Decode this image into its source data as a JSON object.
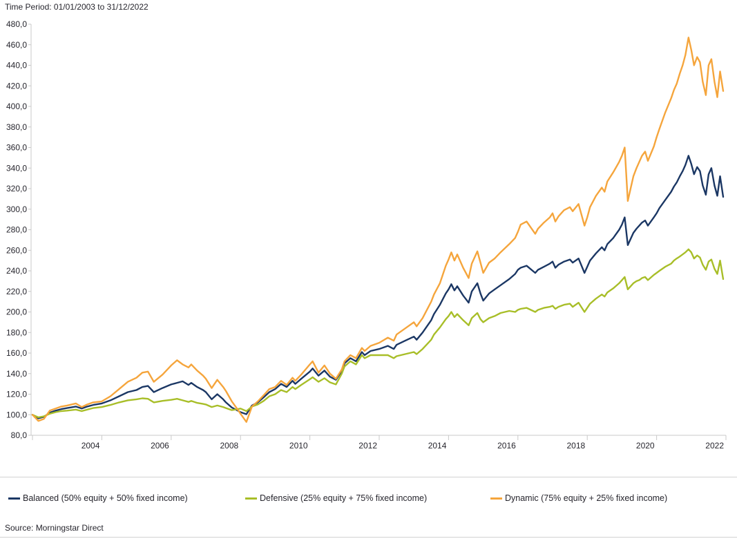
{
  "header": {
    "time_period": "Time Period: 01/01/2003 to 31/12/2022"
  },
  "footer": {
    "source": "Source: Morningstar Direct"
  },
  "colors": {
    "balanced": "#1b3764",
    "defensive": "#a8be28",
    "dynamic": "#f5a53c",
    "axis": "#c9c9c9",
    "divider": "#d2d2d2",
    "text": "#26252d"
  },
  "chart_data": {
    "type": "line",
    "title": "Time Period: 01/01/2003 to 31/12/2022",
    "xlabel": "",
    "ylabel": "",
    "xlim": [
      2003,
      2023
    ],
    "ylim": [
      80,
      480
    ],
    "grid": false,
    "legend_position": "bottom",
    "y_ticks": [
      80,
      100,
      120,
      140,
      160,
      180,
      200,
      220,
      240,
      260,
      280,
      300,
      320,
      340,
      360,
      380,
      400,
      420,
      440,
      460,
      480
    ],
    "y_tick_labels": [
      "80,0",
      "100,0",
      "120,0",
      "140,0",
      "160,0",
      "180,0",
      "200,0",
      "220,0",
      "240,0",
      "260,0",
      "280,0",
      "300,0",
      "320,0",
      "340,0",
      "360,0",
      "380,0",
      "400,0",
      "420,0",
      "440,0",
      "460,0",
      "480,0"
    ],
    "x_ticks": [
      2003,
      2005,
      2007,
      2009,
      2011,
      2013,
      2015,
      2017,
      2019,
      2021,
      2023
    ],
    "x_tick_labels": [
      {
        "text": "2004",
        "at": 2005
      },
      {
        "text": "2006",
        "at": 2007
      },
      {
        "text": "2008",
        "at": 2009
      },
      {
        "text": "2010",
        "at": 2011
      },
      {
        "text": "2012",
        "at": 2013
      },
      {
        "text": "2014",
        "at": 2015
      },
      {
        "text": "2016",
        "at": 2017
      },
      {
        "text": "2018",
        "at": 2019
      },
      {
        "text": "2020",
        "at": 2021
      },
      {
        "text": "2022",
        "at": 2023
      }
    ],
    "x": [
      2003.0,
      2003.17,
      2003.33,
      2003.5,
      2003.67,
      2003.83,
      2004.0,
      2004.25,
      2004.42,
      2004.58,
      2004.75,
      2005.0,
      2005.25,
      2005.5,
      2005.75,
      2006.0,
      2006.17,
      2006.33,
      2006.5,
      2006.75,
      2007.0,
      2007.17,
      2007.33,
      2007.5,
      2007.58,
      2007.75,
      2007.92,
      2008.0,
      2008.17,
      2008.33,
      2008.5,
      2008.58,
      2008.75,
      2008.92,
      2009.0,
      2009.17,
      2009.33,
      2009.5,
      2009.67,
      2009.83,
      2010.0,
      2010.17,
      2010.33,
      2010.5,
      2010.58,
      2010.75,
      2011.0,
      2011.08,
      2011.25,
      2011.42,
      2011.5,
      2011.58,
      2011.75,
      2011.92,
      2012.0,
      2012.17,
      2012.33,
      2012.5,
      2012.58,
      2012.75,
      2013.0,
      2013.25,
      2013.42,
      2013.5,
      2013.75,
      2014.0,
      2014.08,
      2014.25,
      2014.5,
      2014.58,
      2014.75,
      2014.92,
      2015.0,
      2015.08,
      2015.17,
      2015.25,
      2015.42,
      2015.58,
      2015.67,
      2015.83,
      2015.92,
      2016.0,
      2016.17,
      2016.33,
      2016.5,
      2016.75,
      2016.92,
      2017.0,
      2017.08,
      2017.25,
      2017.5,
      2017.58,
      2017.75,
      2017.92,
      2018.0,
      2018.08,
      2018.17,
      2018.33,
      2018.5,
      2018.58,
      2018.75,
      2018.92,
      2019.0,
      2019.08,
      2019.25,
      2019.42,
      2019.5,
      2019.58,
      2019.75,
      2019.92,
      2020.0,
      2020.08,
      2020.17,
      2020.33,
      2020.42,
      2020.5,
      2020.58,
      2020.67,
      2020.75,
      2020.92,
      2021.0,
      2021.08,
      2021.25,
      2021.42,
      2021.5,
      2021.58,
      2021.67,
      2021.75,
      2021.83,
      2021.92,
      2022.0,
      2022.08,
      2022.17,
      2022.25,
      2022.33,
      2022.42,
      2022.5,
      2022.58,
      2022.67,
      2022.75,
      2022.83,
      2022.92
    ],
    "series": [
      {
        "name": "balanced",
        "label": "Balanced (50% equity + 50% fixed income)",
        "color": "#1b3764",
        "values": [
          100,
          96.5,
          98,
          102,
          104,
          105.5,
          106.5,
          108,
          106,
          108,
          109.5,
          111,
          114,
          118,
          122,
          124,
          127,
          128,
          122,
          126,
          129.5,
          131,
          132.5,
          129,
          131,
          127,
          124,
          122,
          115,
          120,
          115,
          112,
          107,
          104,
          102.5,
          100.5,
          109,
          112,
          117,
          122,
          125,
          130,
          127,
          133,
          130,
          135,
          142,
          145,
          138,
          143,
          140,
          137,
          134,
          142.5,
          150,
          155,
          152,
          161,
          158,
          162,
          164,
          167,
          164,
          168,
          172,
          176,
          173,
          180,
          192,
          198,
          207,
          218,
          222,
          227,
          221,
          225,
          216,
          209,
          220,
          228,
          218,
          211,
          218,
          222,
          226,
          232,
          237,
          241,
          243,
          245,
          238,
          241,
          244,
          247,
          249,
          243,
          246,
          249,
          251,
          248,
          252,
          238,
          244,
          250,
          257,
          263,
          260,
          266,
          272,
          280,
          285,
          292,
          265,
          277,
          281,
          284,
          287,
          289,
          284,
          292,
          296,
          301,
          309,
          317,
          322,
          326,
          332,
          337,
          343,
          352,
          344,
          334,
          341,
          337,
          323,
          314,
          334,
          340,
          323,
          313,
          332,
          312
        ]
      },
      {
        "name": "defensive",
        "label": "Defensive (25% equity + 75% fixed income)",
        "color": "#a8be28",
        "values": [
          100,
          97.5,
          98.5,
          101,
          102.5,
          103.5,
          104,
          105,
          103.5,
          105,
          106.5,
          107.5,
          109.5,
          112,
          114,
          115,
          116,
          115.5,
          112,
          113.5,
          114.5,
          115.5,
          114,
          112.5,
          113.5,
          111.5,
          110.5,
          110,
          107.5,
          109,
          107.5,
          106.5,
          104.5,
          105.5,
          106,
          103.5,
          108,
          110,
          113.5,
          118,
          120,
          124,
          122,
          127,
          125,
          129,
          134.5,
          136.5,
          132,
          135.5,
          133.5,
          131.5,
          129.5,
          140,
          147,
          152,
          149,
          158,
          155,
          158,
          158,
          158,
          155,
          157,
          159,
          161,
          159,
          164,
          173,
          178,
          185,
          193,
          196,
          200,
          195,
          198,
          192,
          187,
          194,
          199,
          193,
          190,
          194,
          196,
          199,
          201,
          200,
          202,
          203,
          204,
          200,
          202,
          204,
          205,
          206,
          203,
          205,
          207,
          208,
          205,
          209,
          200,
          204,
          208,
          213,
          217,
          215,
          219,
          223,
          228,
          231,
          234,
          222,
          228,
          230,
          231,
          233,
          234,
          231,
          236,
          238,
          240,
          244,
          247,
          250,
          252,
          254,
          256,
          258,
          261,
          258,
          252,
          255,
          253,
          246,
          241,
          249,
          251,
          242,
          237,
          250,
          232
        ]
      },
      {
        "name": "dynamic",
        "label": "Dynamic (75% equity + 25% fixed income)",
        "color": "#f5a53c",
        "values": [
          100,
          94,
          96,
          104,
          106,
          108,
          109,
          111,
          107.5,
          110,
          112,
          113,
          118,
          125,
          132,
          136,
          141,
          142,
          132,
          139,
          148,
          153,
          149,
          146,
          149,
          143,
          138,
          135,
          126,
          134,
          127,
          123,
          113,
          105,
          101,
          93,
          108,
          113,
          119,
          125,
          127,
          133,
          129,
          136,
          133,
          139,
          149,
          152,
          141,
          148,
          144,
          140,
          135,
          144,
          152,
          158,
          155,
          165,
          162,
          167,
          170,
          175,
          172,
          178,
          184,
          190,
          186,
          194,
          210,
          217,
          228,
          245,
          251,
          258,
          250,
          256,
          243,
          233,
          247,
          259,
          248,
          238,
          248,
          252,
          258,
          266,
          272,
          278,
          285,
          288,
          276,
          281,
          287,
          292,
          296,
          288,
          293,
          299,
          302,
          298,
          305,
          284,
          292,
          302,
          313,
          321,
          317,
          327,
          336,
          346,
          352,
          360,
          308,
          332,
          340,
          346,
          352,
          356,
          347,
          361,
          370,
          378,
          394,
          408,
          416,
          422,
          432,
          440,
          450,
          467,
          455,
          440,
          448,
          443,
          424,
          411,
          440,
          446,
          424,
          409,
          434,
          415
        ]
      }
    ]
  }
}
